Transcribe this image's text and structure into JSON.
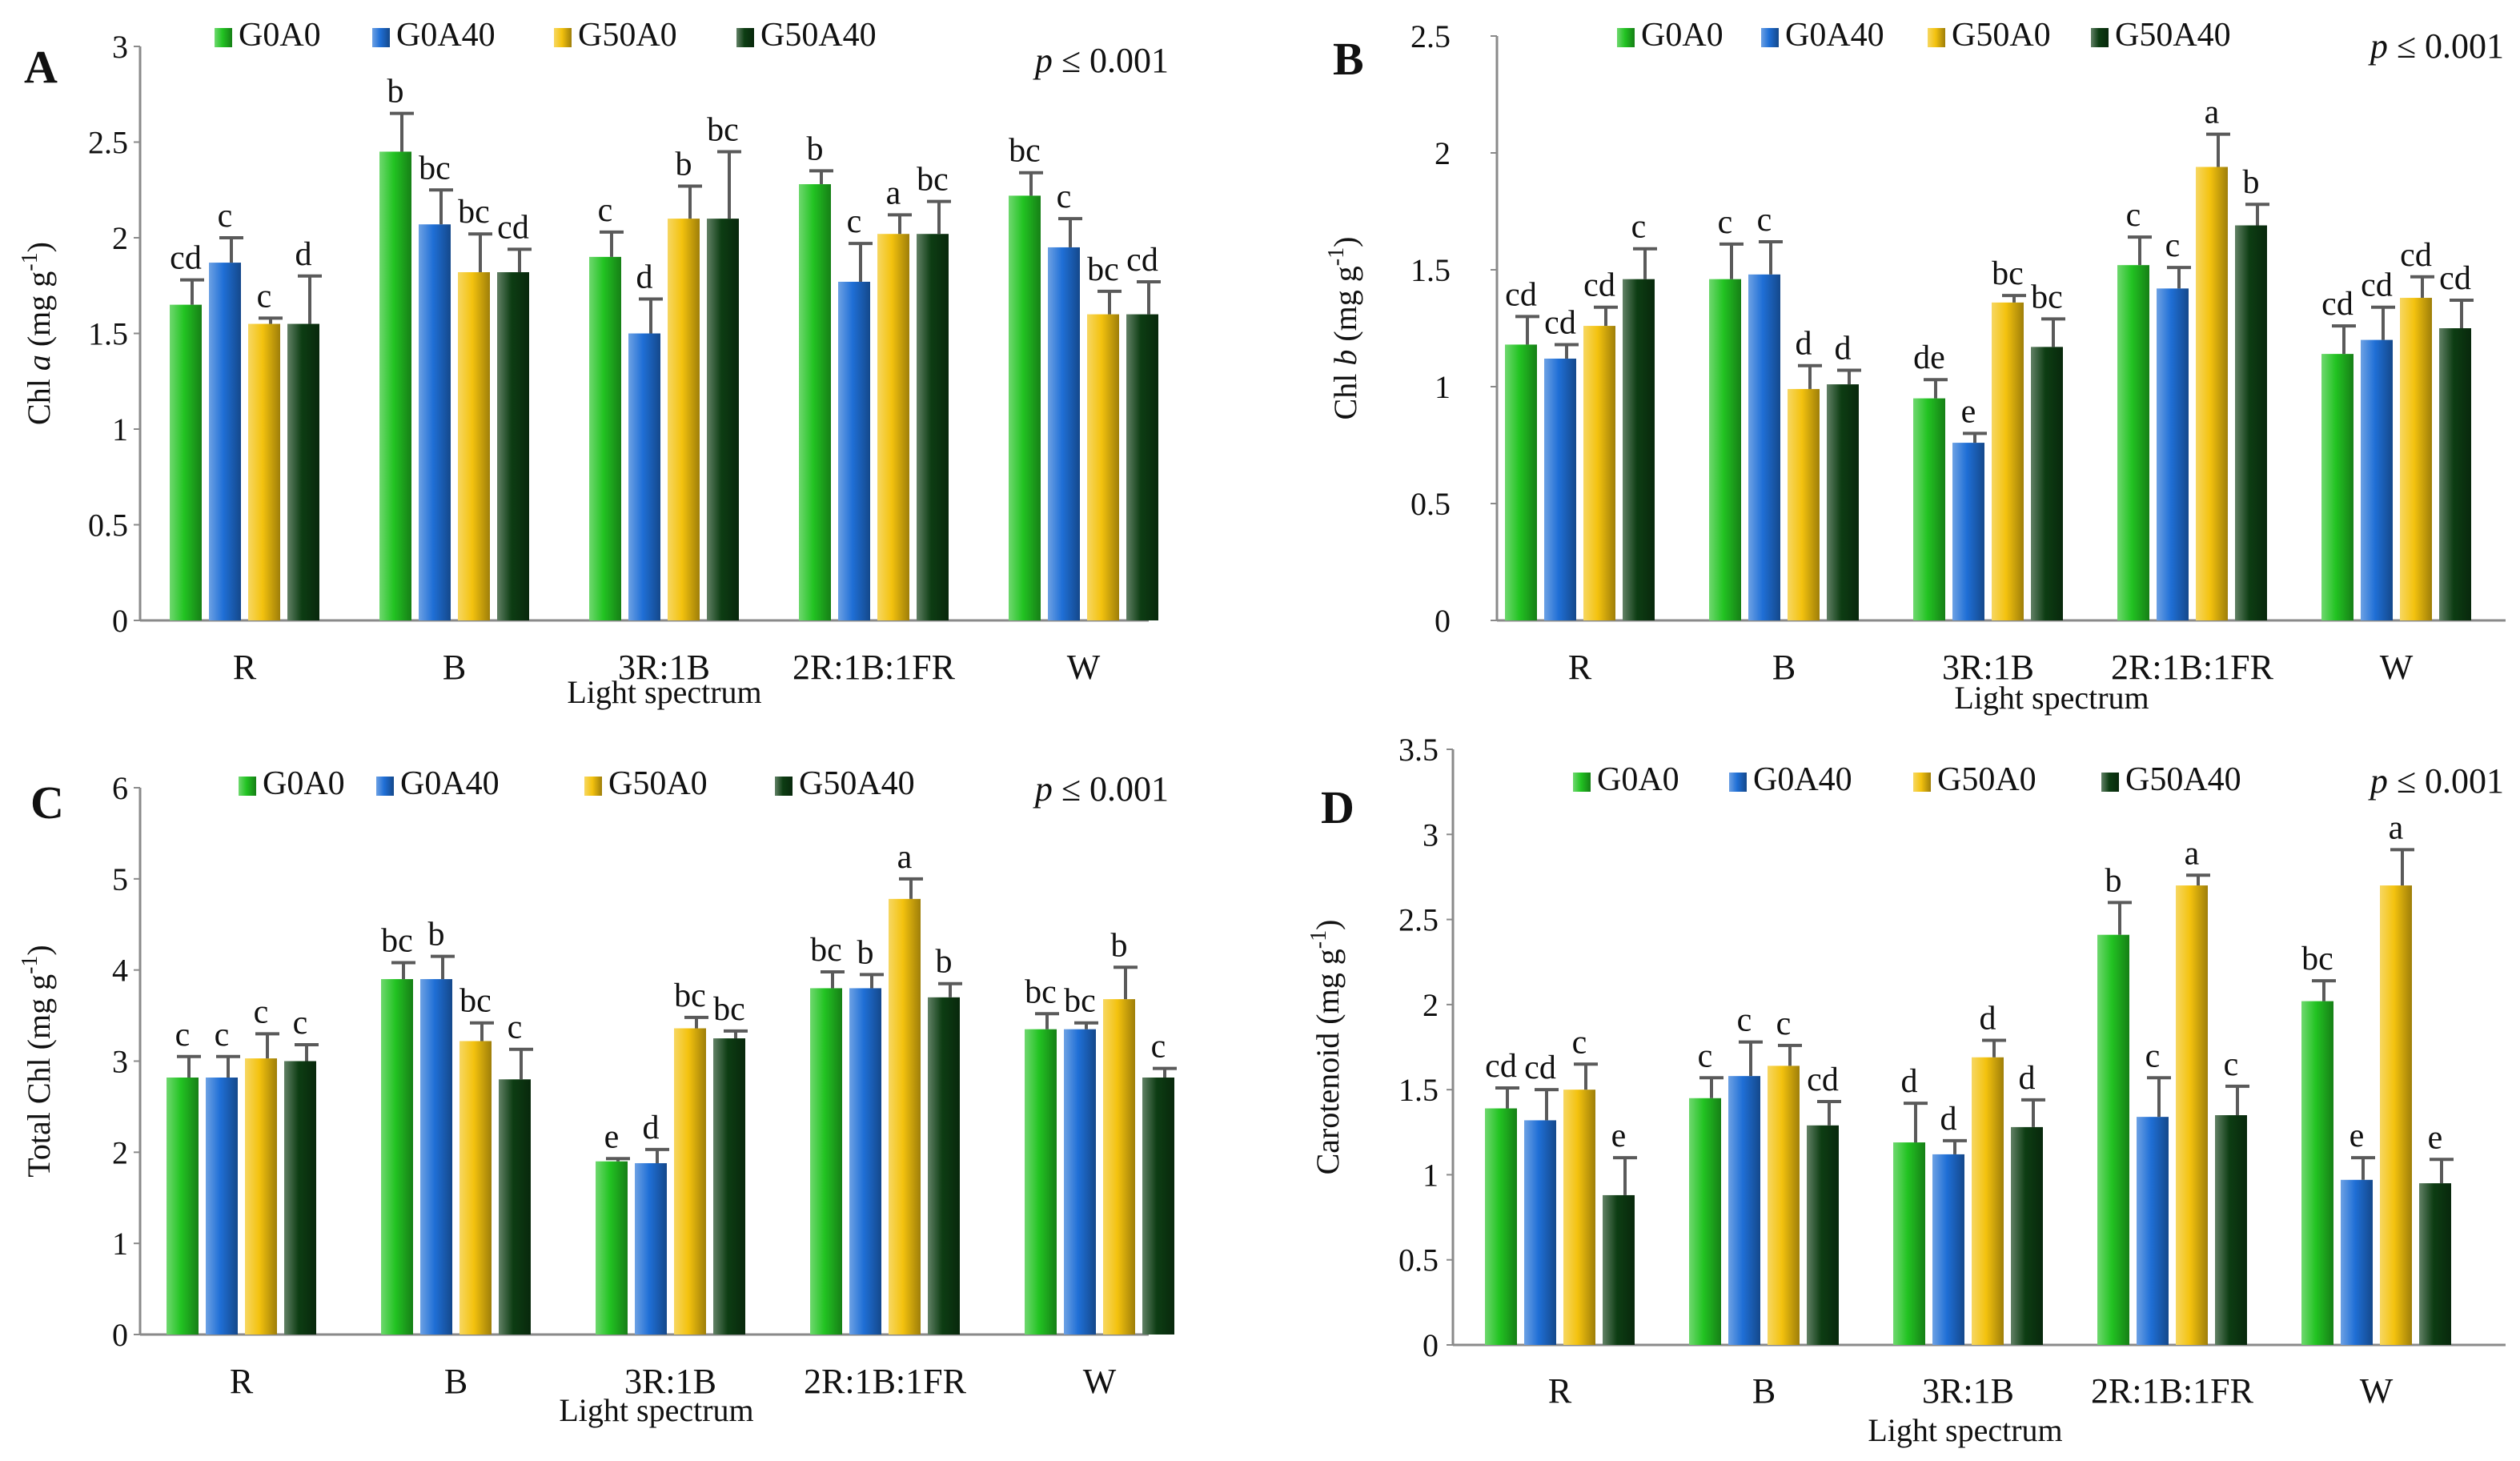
{
  "figure": {
    "x_axis_title": "Light spectrum",
    "significance": "p ≤ 0.001",
    "series_colors": {
      "G0A0": "#22c322",
      "G0A40": "#1f6fd6",
      "G50A0": "#f3c20e",
      "G50A40": "#0d3d13"
    },
    "error_bar_color": "#5a5a5a"
  },
  "chart_data": [
    {
      "panel": "A",
      "type": "bar",
      "ylabel": "Chl a (mg g-1)",
      "ylabel_parts": {
        "pre": "Chl ",
        "ital": "a",
        "post": " (mg g",
        "sup": "-1",
        "end": ")"
      },
      "ylim": [
        0,
        3
      ],
      "yticks": [
        "0",
        "0.5",
        "1",
        "1.5",
        "2",
        "2.5",
        "3"
      ],
      "legend": [
        "G0A0",
        "G0A40",
        "G50A0",
        "G50A40"
      ],
      "categories": [
        "R",
        "B",
        "3R:1B",
        "2R:1B:1FR",
        "W"
      ],
      "series": [
        {
          "name": "G0A0",
          "values": [
            1.65,
            2.45,
            1.9,
            2.28,
            2.22
          ],
          "errors": [
            0.13,
            0.2,
            0.13,
            0.07,
            0.12
          ],
          "letters": [
            "cd",
            "b",
            "c",
            "b",
            "bc"
          ]
        },
        {
          "name": "G0A40",
          "values": [
            1.87,
            2.07,
            1.5,
            1.77,
            1.95
          ],
          "errors": [
            0.13,
            0.18,
            0.18,
            0.2,
            0.15
          ],
          "letters": [
            "c",
            "bc",
            "d",
            "c",
            "c"
          ]
        },
        {
          "name": "G50A0",
          "values": [
            1.55,
            1.82,
            2.1,
            2.02,
            1.6
          ],
          "errors": [
            0.03,
            0.2,
            0.17,
            0.1,
            0.12
          ],
          "letters": [
            "c",
            "bc",
            "b",
            "a",
            "bc"
          ]
        },
        {
          "name": "G50A40",
          "values": [
            1.55,
            1.82,
            2.1,
            2.02,
            1.6
          ],
          "errors": [
            0.25,
            0.12,
            0.35,
            0.17,
            0.17
          ],
          "letters": [
            "d",
            "cd",
            "bc",
            "bc",
            "cd"
          ]
        }
      ]
    },
    {
      "panel": "B",
      "type": "bar",
      "ylabel": "Chl b (mg g-1)",
      "ylabel_parts": {
        "pre": "Chl ",
        "ital": "b",
        "post": " (mg g",
        "sup": "-1",
        "end": ")"
      },
      "ylim": [
        0,
        2.5
      ],
      "yticks": [
        "0",
        "0.5",
        "1",
        "1.5",
        "2",
        "2.5"
      ],
      "legend": [
        "G0A0",
        "G0A40",
        "G50A0",
        "G50A40"
      ],
      "categories": [
        "R",
        "B",
        "3R:1B",
        "2R:1B:1FR",
        "W"
      ],
      "series": [
        {
          "name": "G0A0",
          "values": [
            1.18,
            1.46,
            0.95,
            1.52,
            1.14
          ],
          "errors": [
            0.12,
            0.15,
            0.08,
            0.12,
            0.12
          ],
          "letters": [
            "cd",
            "c",
            "de",
            "c",
            "cd"
          ]
        },
        {
          "name": "G0A40",
          "values": [
            1.12,
            1.48,
            0.76,
            1.42,
            1.2
          ],
          "errors": [
            0.06,
            0.14,
            0.04,
            0.09,
            0.14
          ],
          "letters": [
            "cd",
            "c",
            "e",
            "c",
            "cd"
          ]
        },
        {
          "name": "G50A0",
          "values": [
            1.26,
            0.99,
            1.36,
            1.94,
            1.38
          ],
          "errors": [
            0.08,
            0.1,
            0.03,
            0.14,
            0.09
          ],
          "letters": [
            "cd",
            "d",
            "bc",
            "a",
            "cd"
          ]
        },
        {
          "name": "G50A40",
          "values": [
            1.46,
            1.01,
            1.17,
            1.69,
            1.25
          ],
          "errors": [
            0.13,
            0.06,
            0.12,
            0.09,
            0.12
          ],
          "letters": [
            "c",
            "d",
            "bc",
            "b",
            "cd"
          ]
        }
      ]
    },
    {
      "panel": "C",
      "type": "bar",
      "ylabel": "Total Chl (mg g-1)",
      "ylabel_parts": {
        "pre": "Total Chl",
        "ital": "",
        "post": " (mg g",
        "sup": "-1",
        "end": ")"
      },
      "ylim": [
        0,
        6
      ],
      "yticks": [
        "0",
        "1",
        "2",
        "3",
        "4",
        "5",
        "6"
      ],
      "legend": [
        "G0A0",
        "G0A40",
        "G50A0",
        "G50A40"
      ],
      "categories": [
        "R",
        "B",
        "3R:1B",
        "2R:1B:1FR",
        "W"
      ],
      "series": [
        {
          "name": "G0A0",
          "values": [
            2.82,
            3.9,
            1.9,
            3.8,
            3.35
          ],
          "errors": [
            0.23,
            0.18,
            0.03,
            0.18,
            0.17
          ],
          "letters": [
            "c",
            "bc",
            "e",
            "bc",
            "bc"
          ]
        },
        {
          "name": "G0A40",
          "values": [
            2.82,
            3.9,
            1.88,
            3.8,
            3.35
          ],
          "errors": [
            0.23,
            0.25,
            0.15,
            0.15,
            0.07
          ],
          "letters": [
            "c",
            "b",
            "d",
            "b",
            "bc"
          ]
        },
        {
          "name": "G50A0",
          "values": [
            3.03,
            3.22,
            3.36,
            4.78,
            3.68
          ],
          "errors": [
            0.27,
            0.2,
            0.12,
            0.22,
            0.35
          ],
          "letters": [
            "c",
            "bc",
            "bc",
            "a",
            "b"
          ]
        },
        {
          "name": "G50A40",
          "values": [
            3.0,
            2.8,
            3.25,
            3.7,
            2.82
          ],
          "errors": [
            0.18,
            0.33,
            0.08,
            0.15,
            0.1
          ],
          "letters": [
            "c",
            "c",
            "bc",
            "b",
            "c"
          ]
        }
      ]
    },
    {
      "panel": "D",
      "type": "bar",
      "ylabel": "Carotenoid (mg g-1)",
      "ylabel_parts": {
        "pre": "Carotenoid",
        "ital": "",
        "post": " (mg g",
        "sup": "-1",
        "end": ")"
      },
      "ylim": [
        0,
        3.5
      ],
      "yticks": [
        "0",
        "0.5",
        "1",
        "1.5",
        "2",
        "2.5",
        "3",
        "3.5"
      ],
      "legend": [
        "G0A0",
        "G0A40",
        "G50A0",
        "G50A40"
      ],
      "categories": [
        "R",
        "B",
        "3R:1B",
        "2R:1B:1FR",
        "W"
      ],
      "series": [
        {
          "name": "G0A0",
          "values": [
            1.39,
            1.45,
            1.19,
            2.41,
            2.02
          ],
          "errors": [
            0.12,
            0.12,
            0.23,
            0.19,
            0.12
          ],
          "letters": [
            "cd",
            "c",
            "d",
            "b",
            "bc"
          ]
        },
        {
          "name": "G0A40",
          "values": [
            1.32,
            1.58,
            1.12,
            1.34,
            0.97
          ],
          "errors": [
            0.18,
            0.2,
            0.08,
            0.23,
            0.13
          ],
          "letters": [
            "cd",
            "c",
            "d",
            "c",
            "e"
          ]
        },
        {
          "name": "G50A0",
          "values": [
            1.5,
            1.64,
            1.69,
            2.7,
            2.7
          ],
          "errors": [
            0.15,
            0.12,
            0.1,
            0.06,
            0.21
          ],
          "letters": [
            "c",
            "c",
            "d",
            "a",
            "a"
          ]
        },
        {
          "name": "G50A40",
          "values": [
            0.88,
            1.29,
            1.28,
            1.35,
            0.95
          ],
          "errors": [
            0.22,
            0.14,
            0.16,
            0.17,
            0.14
          ],
          "letters": [
            "e",
            "cd",
            "d",
            "c",
            "e"
          ]
        }
      ]
    }
  ]
}
